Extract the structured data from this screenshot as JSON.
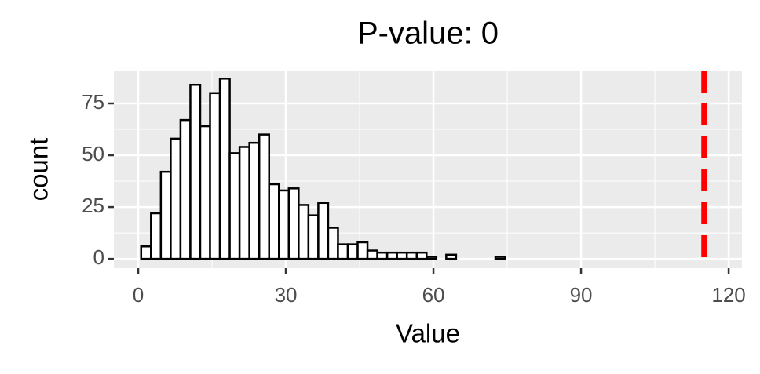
{
  "chart_data": {
    "type": "histogram",
    "title": "P-value: 0",
    "xlabel": "Value",
    "ylabel": "count",
    "bins": [
      0.6,
      2.6,
      4.6,
      6.6,
      8.6,
      10.6,
      12.6,
      14.6,
      16.6,
      18.6,
      20.6,
      22.6,
      24.6,
      26.6,
      28.6,
      30.6,
      32.6,
      34.6,
      36.6,
      38.6,
      40.6,
      42.6,
      44.6,
      46.6,
      48.6,
      50.6,
      52.6,
      54.6,
      56.6,
      58.6,
      60.6,
      62.6,
      64.6,
      66.6,
      68.6,
      70.6,
      72.6,
      74.6,
      76.6,
      78.6,
      80.6,
      82.6,
      84.6,
      86.6,
      88.6,
      90.6,
      92.6,
      94.6,
      96.6,
      98.6,
      100.6,
      102.6,
      104.6,
      106.6,
      108.6,
      110.6,
      112.6,
      114.6,
      116.6
    ],
    "counts": [
      6,
      22,
      42,
      58,
      67,
      84,
      64,
      80,
      87,
      51,
      54,
      56,
      60,
      36,
      33,
      34,
      26,
      21,
      27,
      15,
      7,
      7,
      8,
      4,
      3,
      3,
      3,
      3,
      3,
      1,
      0,
      2,
      0,
      0,
      0,
      0,
      1,
      0,
      0,
      0,
      0,
      0,
      0,
      0,
      0,
      0,
      0,
      0,
      0,
      0,
      0,
      0,
      0,
      0,
      0,
      0,
      0,
      0
    ],
    "fill": "#ffffff",
    "edgecolor": "#000000",
    "vline": 115,
    "vline_color": "#ff0000",
    "xlim": [
      -4.95,
      122.7
    ],
    "ylim": [
      -4.5,
      90.9
    ],
    "xticks": [
      0,
      30,
      60,
      90,
      120
    ],
    "yticks": [
      0,
      25,
      50,
      75
    ],
    "grid": true
  }
}
